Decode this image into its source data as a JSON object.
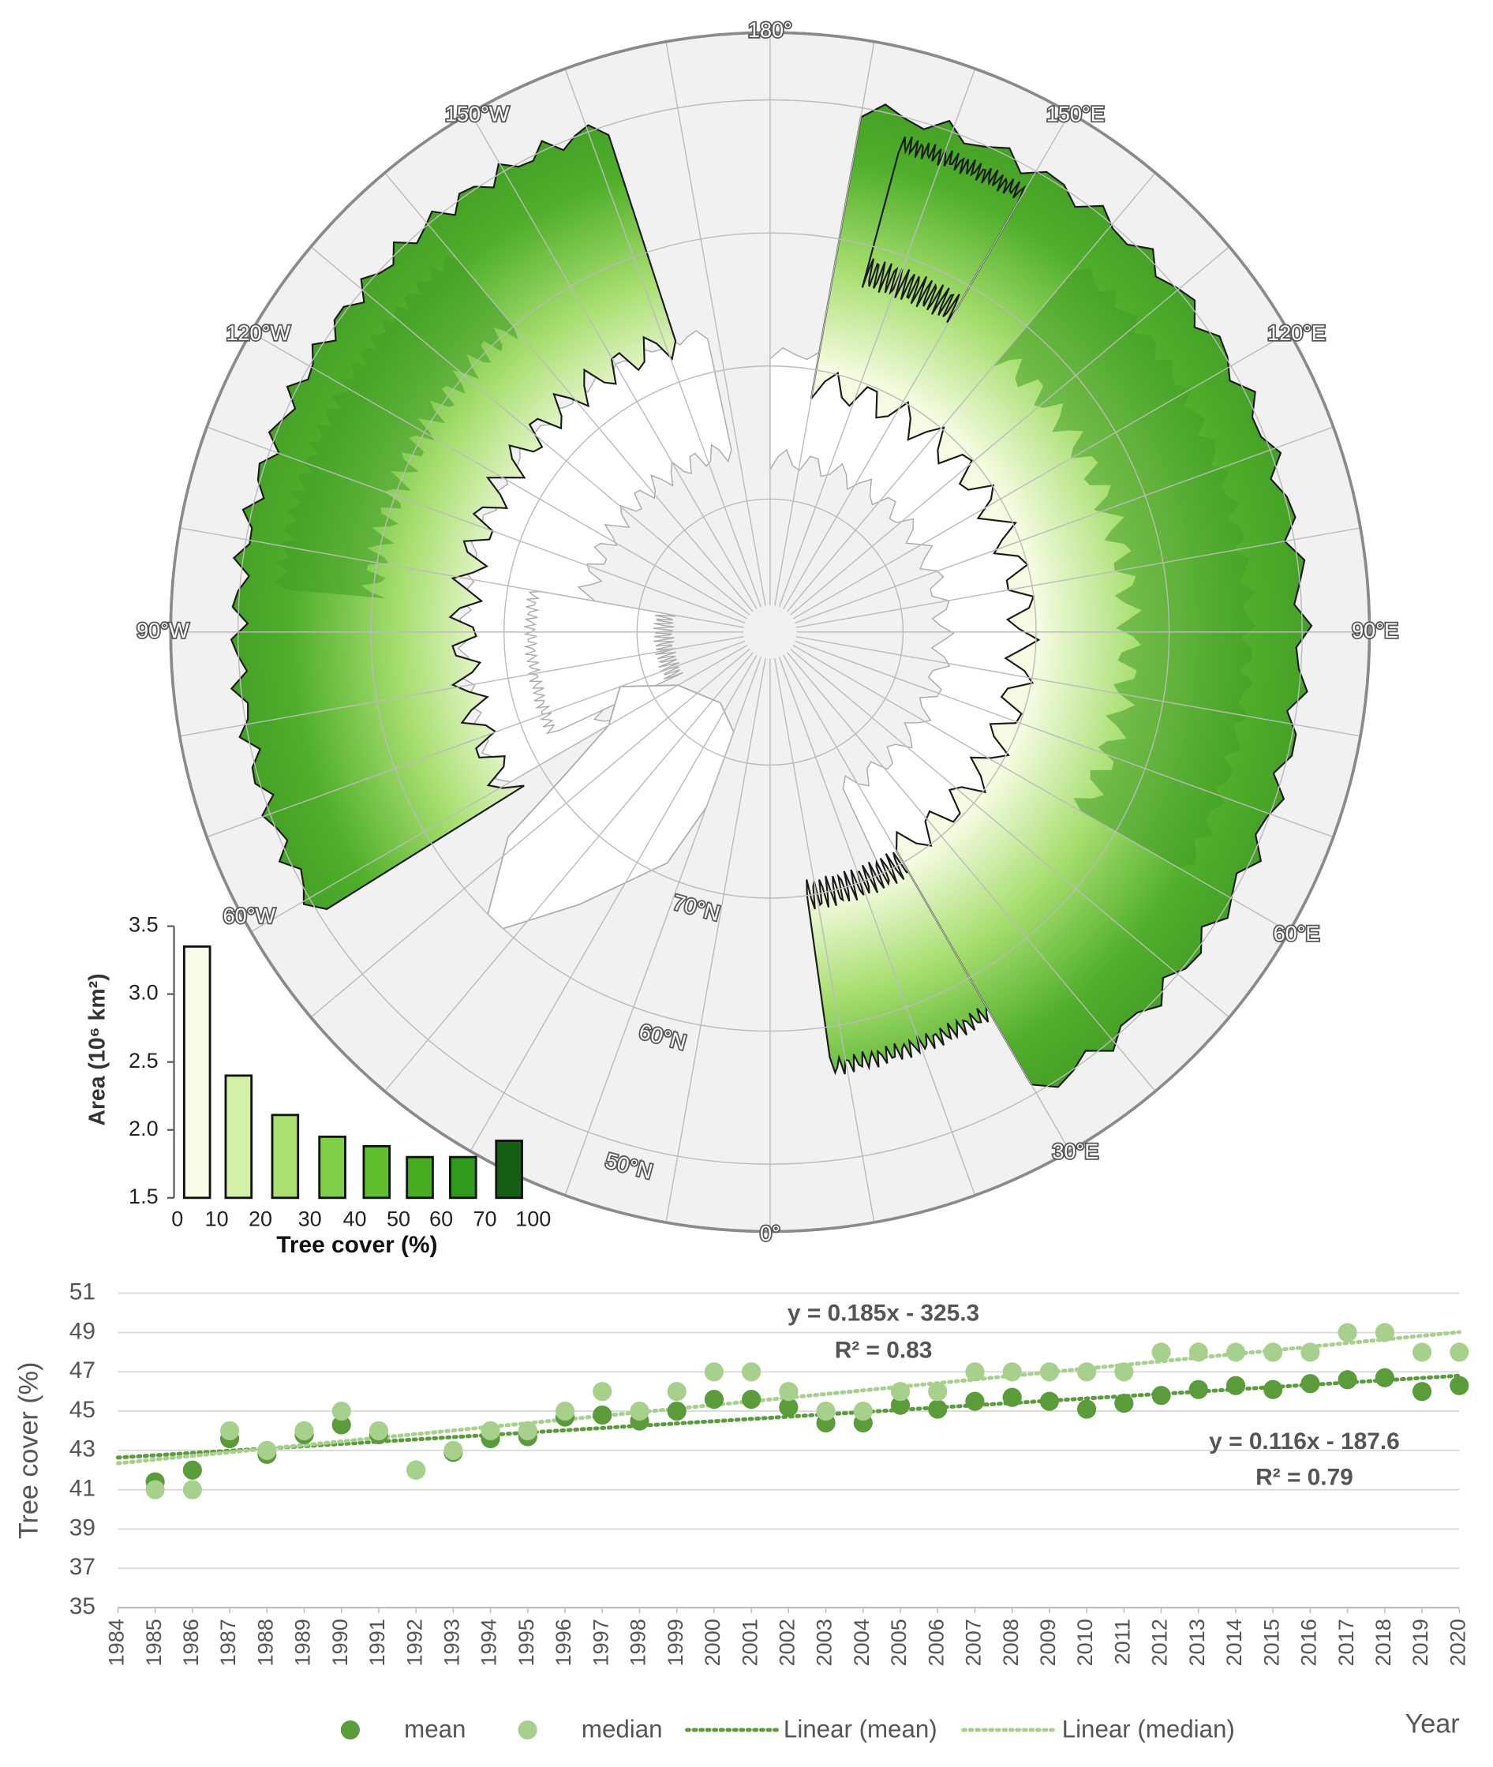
{
  "map": {
    "labels": [
      "180°",
      "150°W",
      "150°E",
      "120°W",
      "120°E",
      "90°W",
      "90°E",
      "60°W",
      "60°E",
      "30°E",
      "0°",
      "70°N",
      "60°N",
      "50°N"
    ]
  },
  "chart_data": [
    {
      "type": "histogram",
      "ylabel": "Area (10⁶ km²)",
      "xlabel": "Tree cover (%)",
      "bins": [
        0,
        10,
        20,
        30,
        40,
        50,
        60,
        70,
        100
      ],
      "values": [
        3.35,
        2.4,
        2.11,
        1.95,
        1.88,
        1.8,
        1.8,
        1.92
      ],
      "colors": [
        "#fbfde9",
        "#d3f0a8",
        "#a9e070",
        "#7fcf47",
        "#5fbf2c",
        "#46ad1f",
        "#2f9a1c",
        "#155f14"
      ],
      "ylim": [
        1.5,
        3.5
      ],
      "yticks": [
        1.5,
        {
          "value": 2,
          "label": "2.0"
        },
        2.5,
        {
          "value": 3,
          "label": "3.0"
        },
        3.5
      ]
    },
    {
      "type": "scatter",
      "ylabel": "Tree cover (%)",
      "xlabel": "Year",
      "x": [
        1985,
        1986,
        1987,
        1988,
        1989,
        1990,
        1991,
        1992,
        1993,
        1994,
        1995,
        1996,
        1997,
        1998,
        1999,
        2000,
        2001,
        2002,
        2003,
        2004,
        2005,
        2006,
        2007,
        2008,
        2009,
        2010,
        2011,
        2012,
        2013,
        2014,
        2015,
        2016,
        2017,
        2018,
        2019,
        2020
      ],
      "series": [
        {
          "name": "mean",
          "color": "#5a9b3a",
          "values": [
            41.4,
            42.0,
            43.6,
            42.8,
            43.8,
            44.3,
            43.8,
            42.0,
            42.9,
            43.6,
            43.7,
            44.7,
            44.8,
            44.5,
            45.0,
            45.6,
            45.6,
            45.2,
            44.4,
            44.4,
            45.3,
            45.1,
            45.5,
            45.7,
            45.5,
            45.1,
            45.4,
            45.8,
            46.1,
            46.3,
            46.1,
            46.4,
            46.6,
            46.7,
            46.0,
            46.3
          ]
        },
        {
          "name": "median",
          "color": "#a8d08d",
          "values": [
            41,
            41,
            44,
            43,
            44,
            45,
            44,
            42,
            43,
            44,
            44,
            45,
            46,
            45,
            46,
            47,
            47,
            46,
            45,
            45,
            46,
            46,
            47,
            47,
            47,
            47,
            47,
            48,
            48,
            48,
            48,
            48,
            49,
            49,
            48,
            48
          ]
        }
      ],
      "trendlines": [
        {
          "name": "Linear (mean)",
          "color": "#5a9b3a"
        },
        {
          "name": "Linear (median)",
          "color": "#a8d08d"
        }
      ],
      "annotations": [
        "y = 0.185x - 325.3",
        "R² = 0.83",
        "y = 0.116x - 187.6",
        "R² = 0.79"
      ],
      "xlim": [
        1984,
        2020
      ],
      "xticks": [
        1984,
        1985,
        1986,
        1987,
        1988,
        1989,
        1990,
        1991,
        1992,
        1993,
        1994,
        1995,
        1996,
        1997,
        1998,
        1999,
        2000,
        2001,
        2002,
        2003,
        2004,
        2005,
        2006,
        2007,
        2008,
        2009,
        2010,
        2011,
        2012,
        2013,
        2014,
        2015,
        2016,
        2017,
        2018,
        2019,
        2020
      ],
      "ylim": [
        35,
        51
      ],
      "yticks": [
        35,
        37,
        39,
        41,
        43,
        45,
        47,
        49,
        51
      ],
      "grid": true
    }
  ]
}
